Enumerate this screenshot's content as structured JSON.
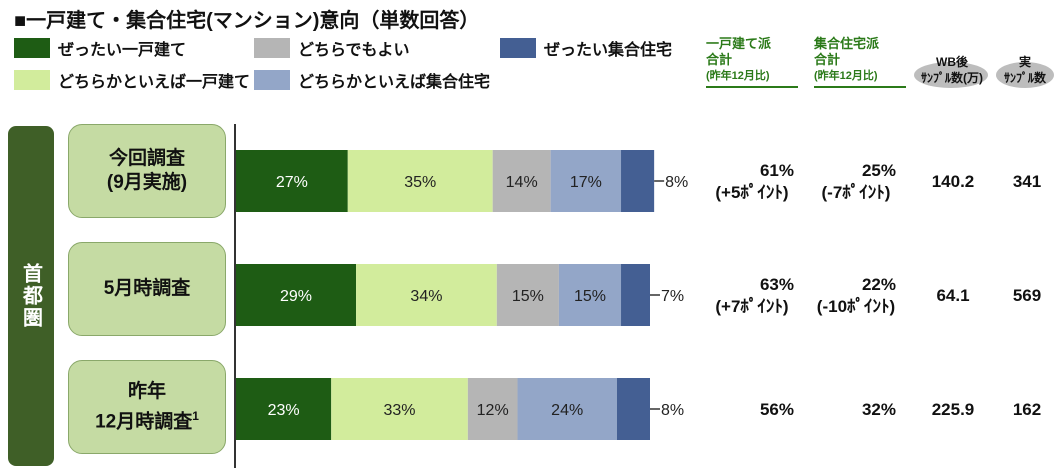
{
  "title": "■一戸建て・集合住宅(マンション)意向（単数回答）",
  "legend": [
    {
      "label": "ぜったい一戸建て",
      "color": "#1e5c14"
    },
    {
      "label": "どちらでもよい",
      "color": "#b5b5b5"
    },
    {
      "label": "ぜったい集合住宅",
      "color": "#445f93"
    },
    {
      "label": "どちらかといえば一戸建て",
      "color": "#d2ec9c"
    },
    {
      "label": "どちらかといえば集合住宅",
      "color": "#93a6c8"
    }
  ],
  "columns": {
    "house_sum": {
      "line1": "一戸建て派",
      "line2": "合計",
      "line3": "(昨年12月比)"
    },
    "apt_sum": {
      "line1": "集合住宅派",
      "line2": "合計",
      "line3": "(昨年12月比)"
    },
    "wb": {
      "line1": "WB後",
      "line2": "ｻﾝﾌﾟﾙ数(万)"
    },
    "real": {
      "line1": "実",
      "line2": "ｻﾝﾌﾟﾙ数"
    }
  },
  "region_label": "首都圏",
  "chart_data": {
    "type": "bar",
    "stacked": true,
    "orientation": "horizontal",
    "categories": [
      "今回調査\n(9月実施)",
      "5月時調査",
      "昨年\n12月時調査"
    ],
    "category_footnote": [
      "",
      "",
      "1"
    ],
    "series": [
      {
        "name": "ぜったい一戸建て",
        "values": [
          27,
          29,
          23
        ]
      },
      {
        "name": "どちらかといえば一戸建て",
        "values": [
          35,
          34,
          33
        ]
      },
      {
        "name": "どちらでもよい",
        "values": [
          14,
          15,
          12
        ]
      },
      {
        "name": "どちらかといえば集合住宅",
        "values": [
          17,
          15,
          24
        ]
      },
      {
        "name": "ぜったい集合住宅",
        "values": [
          8,
          7,
          8
        ]
      }
    ],
    "segment_labels": [
      [
        "27%",
        "35%",
        "14%",
        "17%",
        "8%"
      ],
      [
        "29%",
        "34%",
        "15%",
        "15%",
        "7%"
      ],
      [
        "23%",
        "33%",
        "12%",
        "24%",
        "8%"
      ]
    ],
    "xlim": [
      0,
      100
    ]
  },
  "table": [
    {
      "house_sum": "61%",
      "house_diff": "(+5ﾎﾟｲﾝﾄ)",
      "apt_sum": "25%",
      "apt_diff": "(-7ﾎﾟｲﾝﾄ)",
      "wb": "140.2",
      "real": "341"
    },
    {
      "house_sum": "63%",
      "house_diff": "(+7ﾎﾟｲﾝﾄ)",
      "apt_sum": "22%",
      "apt_diff": "(-10ﾎﾟｲﾝﾄ)",
      "wb": "64.1",
      "real": "569"
    },
    {
      "house_sum": "56%",
      "house_diff": "",
      "apt_sum": "32%",
      "apt_diff": "",
      "wb": "225.9",
      "real": "162"
    }
  ]
}
